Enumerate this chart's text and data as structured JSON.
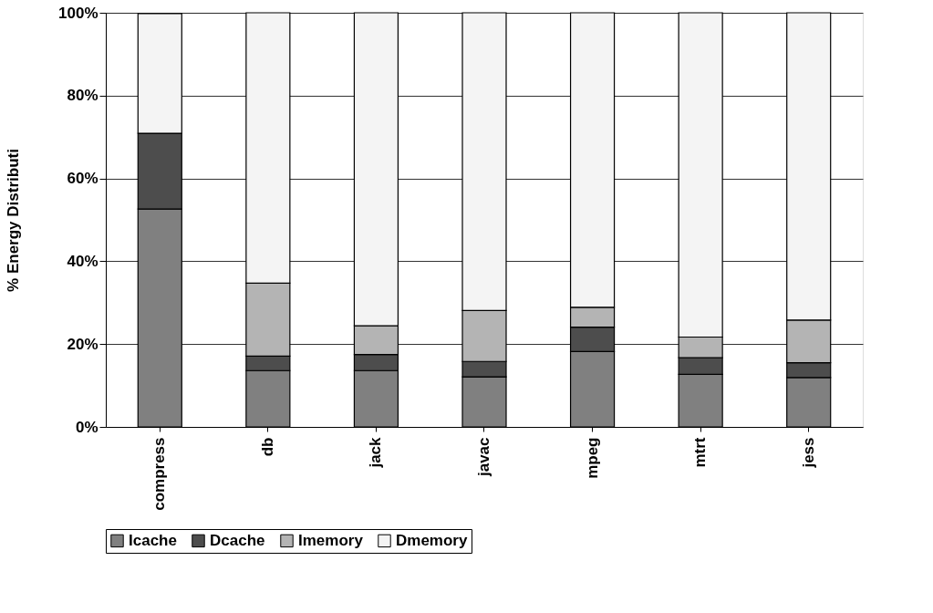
{
  "chart_data": {
    "type": "bar",
    "stacked": true,
    "ylabel": "% Energy Distributi",
    "categories": [
      "compress",
      "db",
      "jack",
      "javac",
      "mpeg",
      "mtrt",
      "jess"
    ],
    "series": [
      {
        "name": "Icache",
        "color": "#808080",
        "values": [
          52.6,
          13.6,
          13.6,
          12.1,
          18.2,
          12.7,
          11.9
        ]
      },
      {
        "name": "Dcache",
        "color": "#4d4d4d",
        "values": [
          18.3,
          3.5,
          3.9,
          3.7,
          5.9,
          4.0,
          3.6
        ]
      },
      {
        "name": "Imemory",
        "color": "#b4b4b4",
        "values": [
          null,
          17.6,
          6.9,
          12.3,
          4.8,
          5.0,
          10.3
        ]
      },
      {
        "name": "Dmemory",
        "color": "#f4f4f4",
        "values": [
          28.9,
          65.3,
          75.6,
          71.9,
          71.1,
          78.3,
          74.2
        ]
      }
    ],
    "ylim": [
      0,
      100
    ],
    "yticks": [
      {
        "value": 0,
        "label": "0%"
      },
      {
        "value": 20,
        "label": "20%"
      },
      {
        "value": 40,
        "label": "40%"
      },
      {
        "value": 60,
        "label": "60%"
      },
      {
        "value": 80,
        "label": "80%"
      },
      {
        "value": 100,
        "label": "100%"
      }
    ],
    "grid": "y",
    "legend": "bottom"
  }
}
